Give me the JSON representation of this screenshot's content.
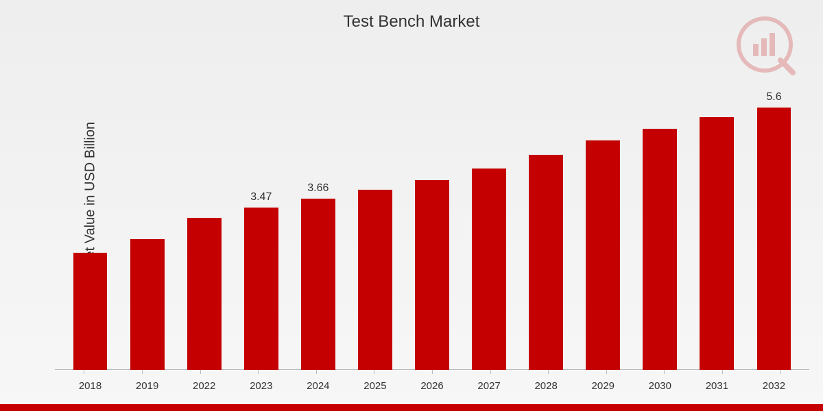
{
  "chart": {
    "type": "bar",
    "title": "Test Bench Market",
    "title_fontsize": 24,
    "ylabel": "Market Value in USD Billion",
    "ylabel_fontsize": 20,
    "categories": [
      "2018",
      "2019",
      "2022",
      "2023",
      "2024",
      "2025",
      "2026",
      "2027",
      "2028",
      "2029",
      "2030",
      "2031",
      "2032"
    ],
    "values": [
      2.5,
      2.8,
      3.25,
      3.47,
      3.66,
      3.85,
      4.05,
      4.3,
      4.6,
      4.9,
      5.15,
      5.4,
      5.6
    ],
    "value_labels": [
      "",
      "",
      "",
      "3.47",
      "3.66",
      "",
      "",
      "",
      "",
      "",
      "",
      "",
      "5.6"
    ],
    "ylim": [
      0,
      6
    ],
    "bar_color": "#c40000",
    "background_gradient": [
      "#eeeeee",
      "#f7f7f7"
    ],
    "axis_line_color": "#bbbbbb",
    "text_color": "#333333",
    "xlabel_fontsize": 15,
    "value_label_fontsize": 16,
    "bar_width_ratio": 0.6,
    "bottom_border_color": "#c40000",
    "bottom_border_height": 10,
    "logo_opacity": 0.22
  }
}
